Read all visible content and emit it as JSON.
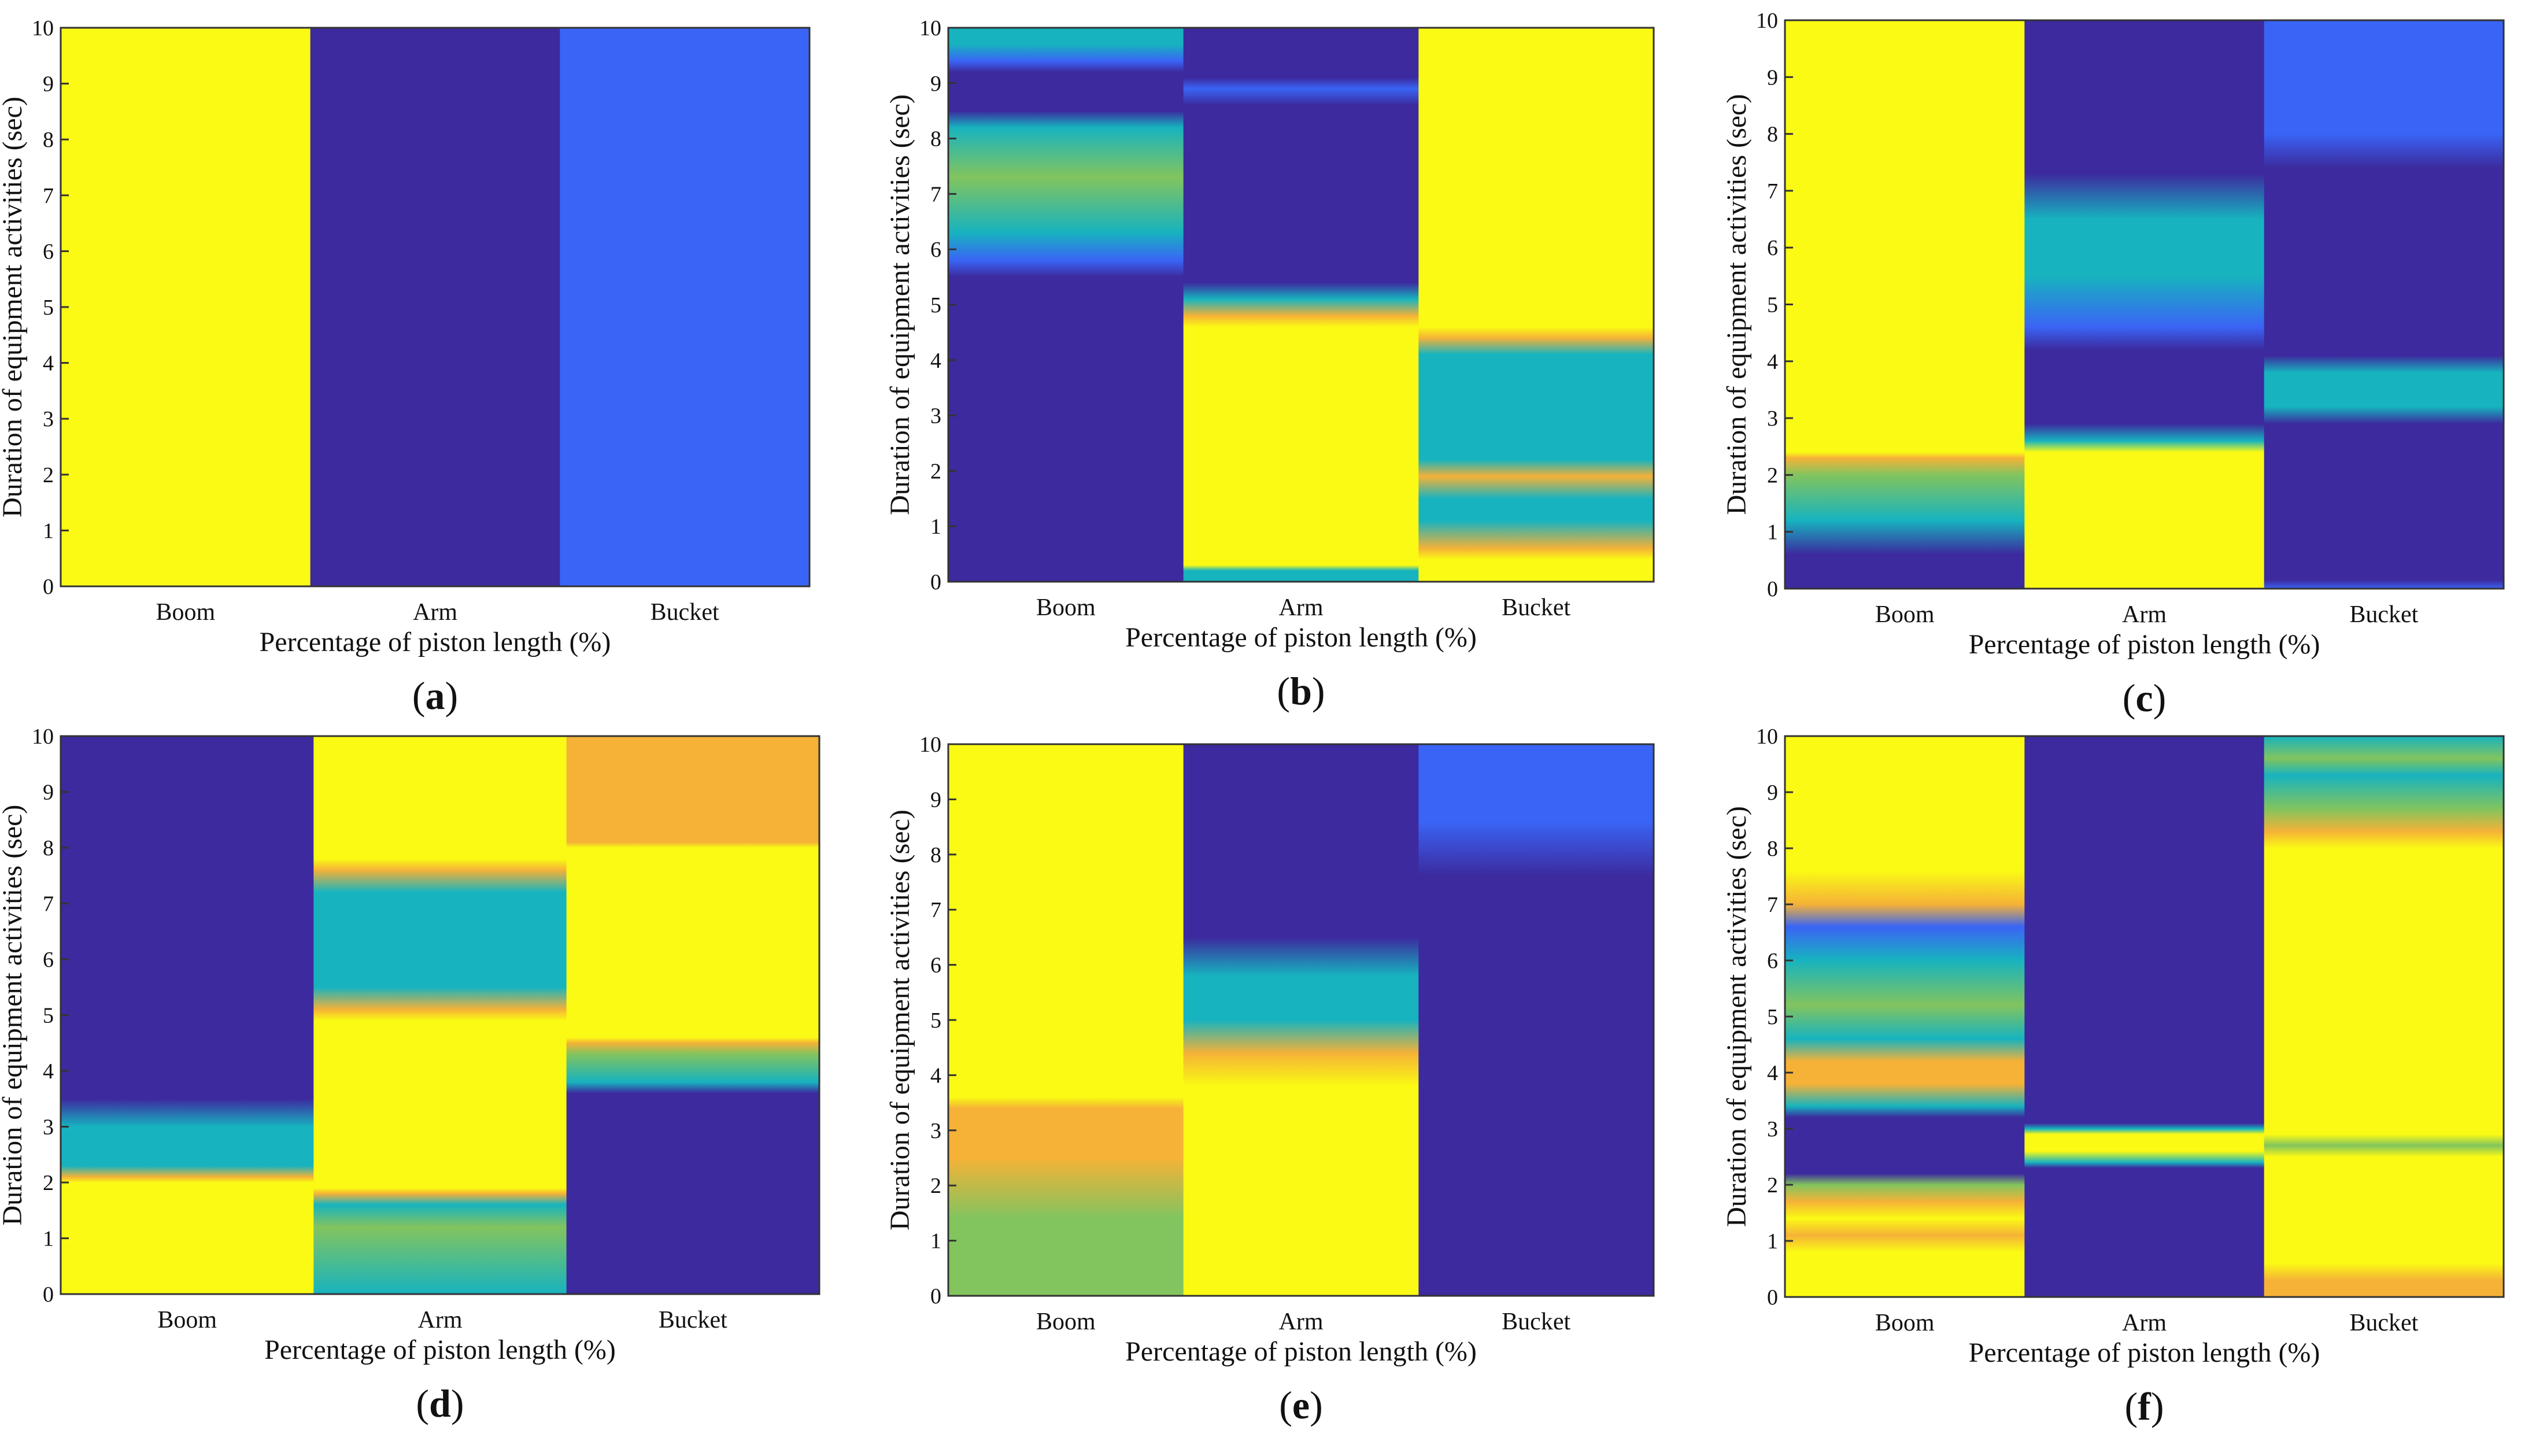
{
  "colors": {
    "dark": "#3c2a9e",
    "yellow": "#fafa14",
    "orange": "#f5b237",
    "teal": "#17b3bf",
    "blue": "#3a64f5",
    "green": "#82c45e"
  },
  "chart_data": [
    {
      "type": "heatmap",
      "label_prefix": "(",
      "label": "a",
      "label_suffix": ")",
      "xlabel": "Percentage of piston length (%)",
      "ylabel": "Duration of equipment activities (sec)",
      "categories": [
        "Boom",
        "Arm",
        "Bucket"
      ],
      "yticks": [
        "0",
        "1",
        "2",
        "3",
        "4",
        "5",
        "6",
        "7",
        "8",
        "9",
        "10"
      ],
      "ylim": [
        0,
        10
      ],
      "columns": [
        [
          [
            0,
            "yellow"
          ],
          [
            10,
            "yellow"
          ]
        ],
        [
          [
            0,
            "dark"
          ],
          [
            10,
            "dark"
          ]
        ],
        [
          [
            0,
            "blue"
          ],
          [
            10,
            "blue"
          ]
        ]
      ]
    },
    {
      "type": "heatmap",
      "label_prefix": "(",
      "label": "b",
      "label_suffix": ")",
      "xlabel": "Percentage of piston length (%)",
      "ylabel": "Duration of equipment activities (sec)",
      "categories": [
        "Boom",
        "Arm",
        "Bucket"
      ],
      "yticks": [
        "0",
        "1",
        "2",
        "3",
        "4",
        "5",
        "6",
        "7",
        "8",
        "9",
        "10"
      ],
      "ylim": [
        0,
        10
      ],
      "columns": [
        [
          [
            0,
            "dark"
          ],
          [
            5.5,
            "dark"
          ],
          [
            5.8,
            "blue"
          ],
          [
            6.3,
            "teal"
          ],
          [
            7.3,
            "green"
          ],
          [
            8.2,
            "teal"
          ],
          [
            8.5,
            "dark"
          ],
          [
            9.2,
            "dark"
          ],
          [
            9.4,
            "blue"
          ],
          [
            9.7,
            "teal"
          ],
          [
            10,
            "teal"
          ]
        ],
        [
          [
            0,
            "teal"
          ],
          [
            0.2,
            "teal"
          ],
          [
            0.3,
            "yellow"
          ],
          [
            4.6,
            "yellow"
          ],
          [
            4.8,
            "orange"
          ],
          [
            5.1,
            "teal"
          ],
          [
            5.4,
            "dark"
          ],
          [
            8.6,
            "dark"
          ],
          [
            8.9,
            "blue"
          ],
          [
            9.1,
            "dark"
          ],
          [
            10,
            "dark"
          ]
        ],
        [
          [
            0,
            "yellow"
          ],
          [
            0.4,
            "yellow"
          ],
          [
            0.6,
            "orange"
          ],
          [
            1.1,
            "teal"
          ],
          [
            1.5,
            "teal"
          ],
          [
            1.9,
            "orange"
          ],
          [
            2.2,
            "teal"
          ],
          [
            3.5,
            "teal"
          ],
          [
            4.1,
            "teal"
          ],
          [
            4.4,
            "orange"
          ],
          [
            4.6,
            "yellow"
          ],
          [
            10,
            "yellow"
          ]
        ]
      ]
    },
    {
      "type": "heatmap",
      "label_prefix": "(",
      "label": "c",
      "label_suffix": ")",
      "xlabel": "Percentage of piston length (%)",
      "ylabel": "Duration of equipment activities (sec)",
      "categories": [
        "Boom",
        "Arm",
        "Bucket"
      ],
      "yticks": [
        "0",
        "1",
        "2",
        "3",
        "4",
        "5",
        "6",
        "7",
        "8",
        "9",
        "10"
      ],
      "ylim": [
        0,
        10
      ],
      "columns": [
        [
          [
            0,
            "dark"
          ],
          [
            0.6,
            "dark"
          ],
          [
            1.2,
            "teal"
          ],
          [
            2.0,
            "green"
          ],
          [
            2.3,
            "orange"
          ],
          [
            2.4,
            "yellow"
          ],
          [
            10,
            "yellow"
          ]
        ],
        [
          [
            0,
            "yellow"
          ],
          [
            2.4,
            "yellow"
          ],
          [
            2.6,
            "teal"
          ],
          [
            2.9,
            "dark"
          ],
          [
            4.2,
            "dark"
          ],
          [
            4.6,
            "blue"
          ],
          [
            5.5,
            "teal"
          ],
          [
            6.5,
            "teal"
          ],
          [
            7.3,
            "dark"
          ],
          [
            10,
            "dark"
          ]
        ],
        [
          [
            0,
            "blue"
          ],
          [
            0.15,
            "dark"
          ],
          [
            2.9,
            "dark"
          ],
          [
            3.2,
            "teal"
          ],
          [
            3.8,
            "teal"
          ],
          [
            4.1,
            "dark"
          ],
          [
            7.4,
            "dark"
          ],
          [
            8.0,
            "blue"
          ],
          [
            10,
            "blue"
          ]
        ]
      ]
    },
    {
      "type": "heatmap",
      "label_prefix": "(",
      "label": "d",
      "label_suffix": ")",
      "xlabel": "Percentage of piston length (%)",
      "ylabel": "Duration of equipment activities (sec)",
      "categories": [
        "Boom",
        "Arm",
        "Bucket"
      ],
      "yticks": [
        "0",
        "1",
        "2",
        "3",
        "4",
        "5",
        "6",
        "7",
        "8",
        "9",
        "10"
      ],
      "ylim": [
        0,
        10
      ],
      "columns": [
        [
          [
            0,
            "yellow"
          ],
          [
            2.0,
            "yellow"
          ],
          [
            2.1,
            "orange"
          ],
          [
            2.3,
            "teal"
          ],
          [
            3.0,
            "teal"
          ],
          [
            3.5,
            "dark"
          ],
          [
            10,
            "dark"
          ]
        ],
        [
          [
            0,
            "teal"
          ],
          [
            1.2,
            "green"
          ],
          [
            1.6,
            "teal"
          ],
          [
            1.8,
            "orange"
          ],
          [
            1.9,
            "yellow"
          ],
          [
            4.9,
            "yellow"
          ],
          [
            5.1,
            "orange"
          ],
          [
            5.5,
            "teal"
          ],
          [
            7.2,
            "teal"
          ],
          [
            7.6,
            "orange"
          ],
          [
            7.8,
            "yellow"
          ],
          [
            10,
            "yellow"
          ]
        ],
        [
          [
            0,
            "dark"
          ],
          [
            3.6,
            "dark"
          ],
          [
            3.8,
            "teal"
          ],
          [
            4.3,
            "green"
          ],
          [
            4.5,
            "orange"
          ],
          [
            4.6,
            "yellow"
          ],
          [
            8.0,
            "yellow"
          ],
          [
            8.1,
            "orange"
          ],
          [
            10,
            "orange"
          ]
        ]
      ]
    },
    {
      "type": "heatmap",
      "label_prefix": "(",
      "label": "e",
      "label_suffix": ")",
      "xlabel": "Percentage of piston length (%)",
      "ylabel": "Duration of equipment activities (sec)",
      "categories": [
        "Boom",
        "Arm",
        "Bucket"
      ],
      "yticks": [
        "0",
        "1",
        "2",
        "3",
        "4",
        "5",
        "6",
        "7",
        "8",
        "9",
        "10"
      ],
      "ylim": [
        0,
        10
      ],
      "columns": [
        [
          [
            0,
            "green"
          ],
          [
            1.4,
            "green"
          ],
          [
            2.5,
            "orange"
          ],
          [
            3.4,
            "orange"
          ],
          [
            3.6,
            "yellow"
          ],
          [
            10,
            "yellow"
          ]
        ],
        [
          [
            0,
            "yellow"
          ],
          [
            3.8,
            "yellow"
          ],
          [
            4.4,
            "orange"
          ],
          [
            5.0,
            "teal"
          ],
          [
            5.8,
            "teal"
          ],
          [
            6.5,
            "dark"
          ],
          [
            10,
            "dark"
          ]
        ],
        [
          [
            0,
            "dark"
          ],
          [
            7.6,
            "dark"
          ],
          [
            8.6,
            "blue"
          ],
          [
            10,
            "blue"
          ]
        ]
      ]
    },
    {
      "type": "heatmap",
      "label_prefix": "(",
      "label": "f",
      "label_suffix": ")",
      "xlabel": "Percentage of piston length (%)",
      "ylabel": "Duration of equipment activities (sec)",
      "categories": [
        "Boom",
        "Arm",
        "Bucket"
      ],
      "yticks": [
        "0",
        "1",
        "2",
        "3",
        "4",
        "5",
        "6",
        "7",
        "8",
        "9",
        "10"
      ],
      "ylim": [
        0,
        10
      ],
      "columns": [
        [
          [
            0,
            "yellow"
          ],
          [
            0.8,
            "yellow"
          ],
          [
            1.1,
            "orange"
          ],
          [
            1.4,
            "yellow"
          ],
          [
            1.7,
            "orange"
          ],
          [
            2.0,
            "green"
          ],
          [
            2.2,
            "dark"
          ],
          [
            3.2,
            "dark"
          ],
          [
            3.4,
            "teal"
          ],
          [
            3.8,
            "orange"
          ],
          [
            4.2,
            "orange"
          ],
          [
            4.6,
            "teal"
          ],
          [
            5.2,
            "green"
          ],
          [
            6.0,
            "teal"
          ],
          [
            6.6,
            "blue"
          ],
          [
            7.0,
            "orange"
          ],
          [
            7.6,
            "yellow"
          ],
          [
            10,
            "yellow"
          ]
        ],
        [
          [
            0,
            "dark"
          ],
          [
            2.3,
            "dark"
          ],
          [
            2.4,
            "teal"
          ],
          [
            2.6,
            "yellow"
          ],
          [
            2.9,
            "yellow"
          ],
          [
            3.0,
            "teal"
          ],
          [
            3.1,
            "dark"
          ],
          [
            10,
            "dark"
          ]
        ],
        [
          [
            0,
            "orange"
          ],
          [
            0.3,
            "orange"
          ],
          [
            0.6,
            "yellow"
          ],
          [
            2.5,
            "yellow"
          ],
          [
            2.7,
            "green"
          ],
          [
            2.9,
            "yellow"
          ],
          [
            8.0,
            "yellow"
          ],
          [
            8.3,
            "orange"
          ],
          [
            8.7,
            "green"
          ],
          [
            9.3,
            "teal"
          ],
          [
            9.6,
            "green"
          ],
          [
            10,
            "teal"
          ]
        ]
      ]
    }
  ]
}
